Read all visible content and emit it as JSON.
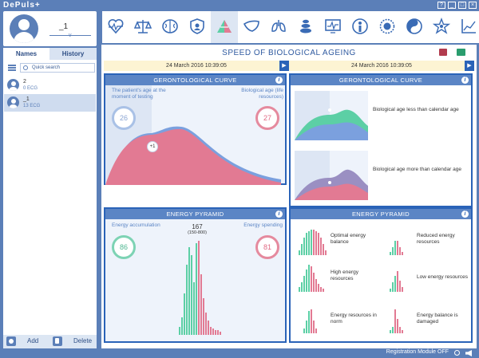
{
  "app": {
    "logo": "DePuls+"
  },
  "profile": {
    "name": "_1"
  },
  "tabs": {
    "names": "Names",
    "history": "History"
  },
  "search": {
    "placeholder": "Quick search"
  },
  "patients": [
    {
      "name": "2",
      "count": "0 ECG"
    },
    {
      "name": "_1",
      "count": "13 ECG"
    }
  ],
  "bottom": {
    "add": "Add",
    "delete": "Delete"
  },
  "toolbar": {
    "items": [
      "heart-pulse-icon",
      "scales-icon",
      "brain-icon",
      "shield-icon",
      "pyramid-icon",
      "liver-icon",
      "lungs-icon",
      "stones-icon",
      "monitor-icon",
      "person-icon",
      "sun-icon",
      "yin-yang-icon",
      "star-icon",
      "chart-icon"
    ],
    "active_index": 4
  },
  "main": {
    "title": "SPEED OF BIOLOGICAL AGEING",
    "date_left": "24 March 2016 10:39:05",
    "date_right": "24 March 2016 10:39:05"
  },
  "geronto_left": {
    "header": "GERONTOLOGICAL CURVE",
    "label_patient_age": "The patient's age at the moment of testing",
    "label_bio_age": "Biological age (life resources)",
    "patient_age": "26",
    "bio_age": "27",
    "diff_badge": "+1"
  },
  "energy_left": {
    "header": "ENERGY PYRAMID",
    "label_accumulation": "Energy accumulation",
    "label_spending": "Energy spending",
    "accumulation": "86",
    "spending": "81",
    "center_value": "167",
    "center_range": "(150-800)"
  },
  "geronto_right": {
    "header": "GERONTOLOGICAL CURVE",
    "legend_less": "Biological age less than calendar age",
    "legend_more": "Biological age more than calendar age"
  },
  "energy_right": {
    "header": "ENERGY PYRAMID",
    "legend_optimal": "Optimal energy balance",
    "legend_reduced": "Reduced energy resources",
    "legend_high": "High energy resources",
    "legend_low": "Low energy resources",
    "legend_norm": "Energy resources in norm",
    "legend_damaged": "Energy balance is damaged"
  },
  "status": {
    "registration": "Registration Module OFF"
  },
  "colors": {
    "accent": "#2a63b8",
    "green": "#5ccfa5",
    "red": "#e27a93",
    "blue": "#7ba0de"
  }
}
